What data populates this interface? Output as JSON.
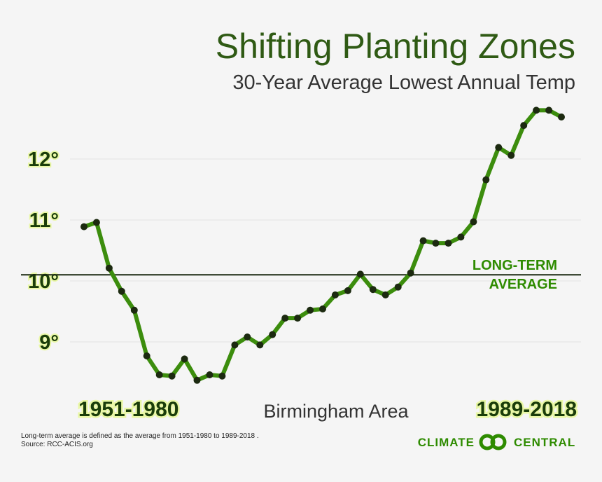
{
  "chart_data": {
    "type": "line",
    "title": "Shifting Planting Zones",
    "subtitle": "30-Year Average Lowest Annual Temp",
    "location_label": "Birmingham Area",
    "start_period_label": "1951-1980",
    "end_period_label": "1989-2018",
    "ylim": [
      8.3,
      12.9
    ],
    "yticks": [
      9,
      10,
      11,
      12
    ],
    "ytick_labels": [
      "9°",
      "10°",
      "11°",
      "12°"
    ],
    "grid": true,
    "reference_line": {
      "value": 10.1,
      "label_line1": "LONG-TERM",
      "label_line2": "AVERAGE"
    },
    "series": [
      {
        "name": "30-Year Average Lowest Annual Temp",
        "x": [
          1980,
          1981,
          1982,
          1983,
          1984,
          1985,
          1986,
          1987,
          1988,
          1989,
          1990,
          1991,
          1992,
          1993,
          1994,
          1995,
          1996,
          1997,
          1998,
          1999,
          2000,
          2001,
          2002,
          2003,
          2004,
          2005,
          2006,
          2007,
          2008,
          2009,
          2010,
          2011,
          2012,
          2013,
          2014,
          2015,
          2016,
          2017,
          2018
        ],
        "values": [
          10.89,
          10.96,
          10.21,
          9.83,
          9.52,
          8.77,
          8.46,
          8.44,
          8.72,
          8.37,
          8.46,
          8.44,
          8.95,
          9.08,
          8.95,
          9.12,
          9.39,
          9.39,
          9.52,
          9.54,
          9.77,
          9.84,
          10.11,
          9.86,
          9.77,
          9.9,
          10.13,
          10.66,
          10.62,
          10.62,
          10.72,
          10.97,
          11.66,
          12.19,
          12.06,
          12.55,
          12.8,
          12.8,
          12.69
        ]
      }
    ],
    "colors": {
      "line": "#3c8d0d",
      "marker": "#1c2a10",
      "reference_line": "#1b2a12",
      "title": "#2f5a14",
      "accent": "#2e8b00"
    }
  },
  "footnote": {
    "line1": "Long-term average is defined as the average from 1951-1980 to 1989-2018 .",
    "line2": "Source: RCC-ACIS.org"
  },
  "brand": {
    "left": "CLIMATE",
    "right": "CENTRAL",
    "logo_icon": "interlocking-rings-icon"
  }
}
